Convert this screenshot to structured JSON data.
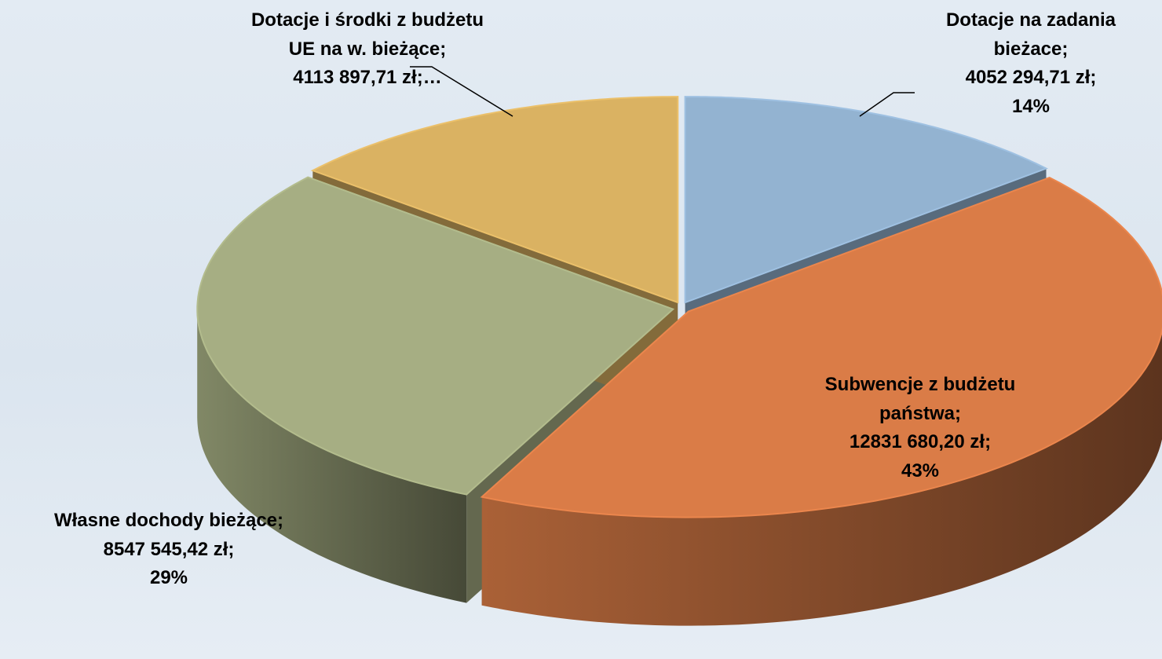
{
  "chart_data": {
    "type": "pie3d",
    "categories": [
      "Dotacje na zadania bieżace",
      "Subwencje z budżetu państwa",
      "Własne dochody bieżące",
      "Dotacje i środki z budżetu UE na w. bieżące"
    ],
    "values": [
      4052294.71,
      12831680.2,
      8547545.42,
      4113897.71
    ],
    "value_labels": [
      "4052 294,71 zł",
      "12831 680,20 zł",
      "8547 545,42 zł",
      "4113 897,71 zł"
    ],
    "percent_labels": [
      "14%",
      "43%",
      "29%",
      "…"
    ],
    "label_separator": ";",
    "colors": [
      "#93b3d1",
      "#da7c47",
      "#a6ae83",
      "#dab262"
    ]
  }
}
